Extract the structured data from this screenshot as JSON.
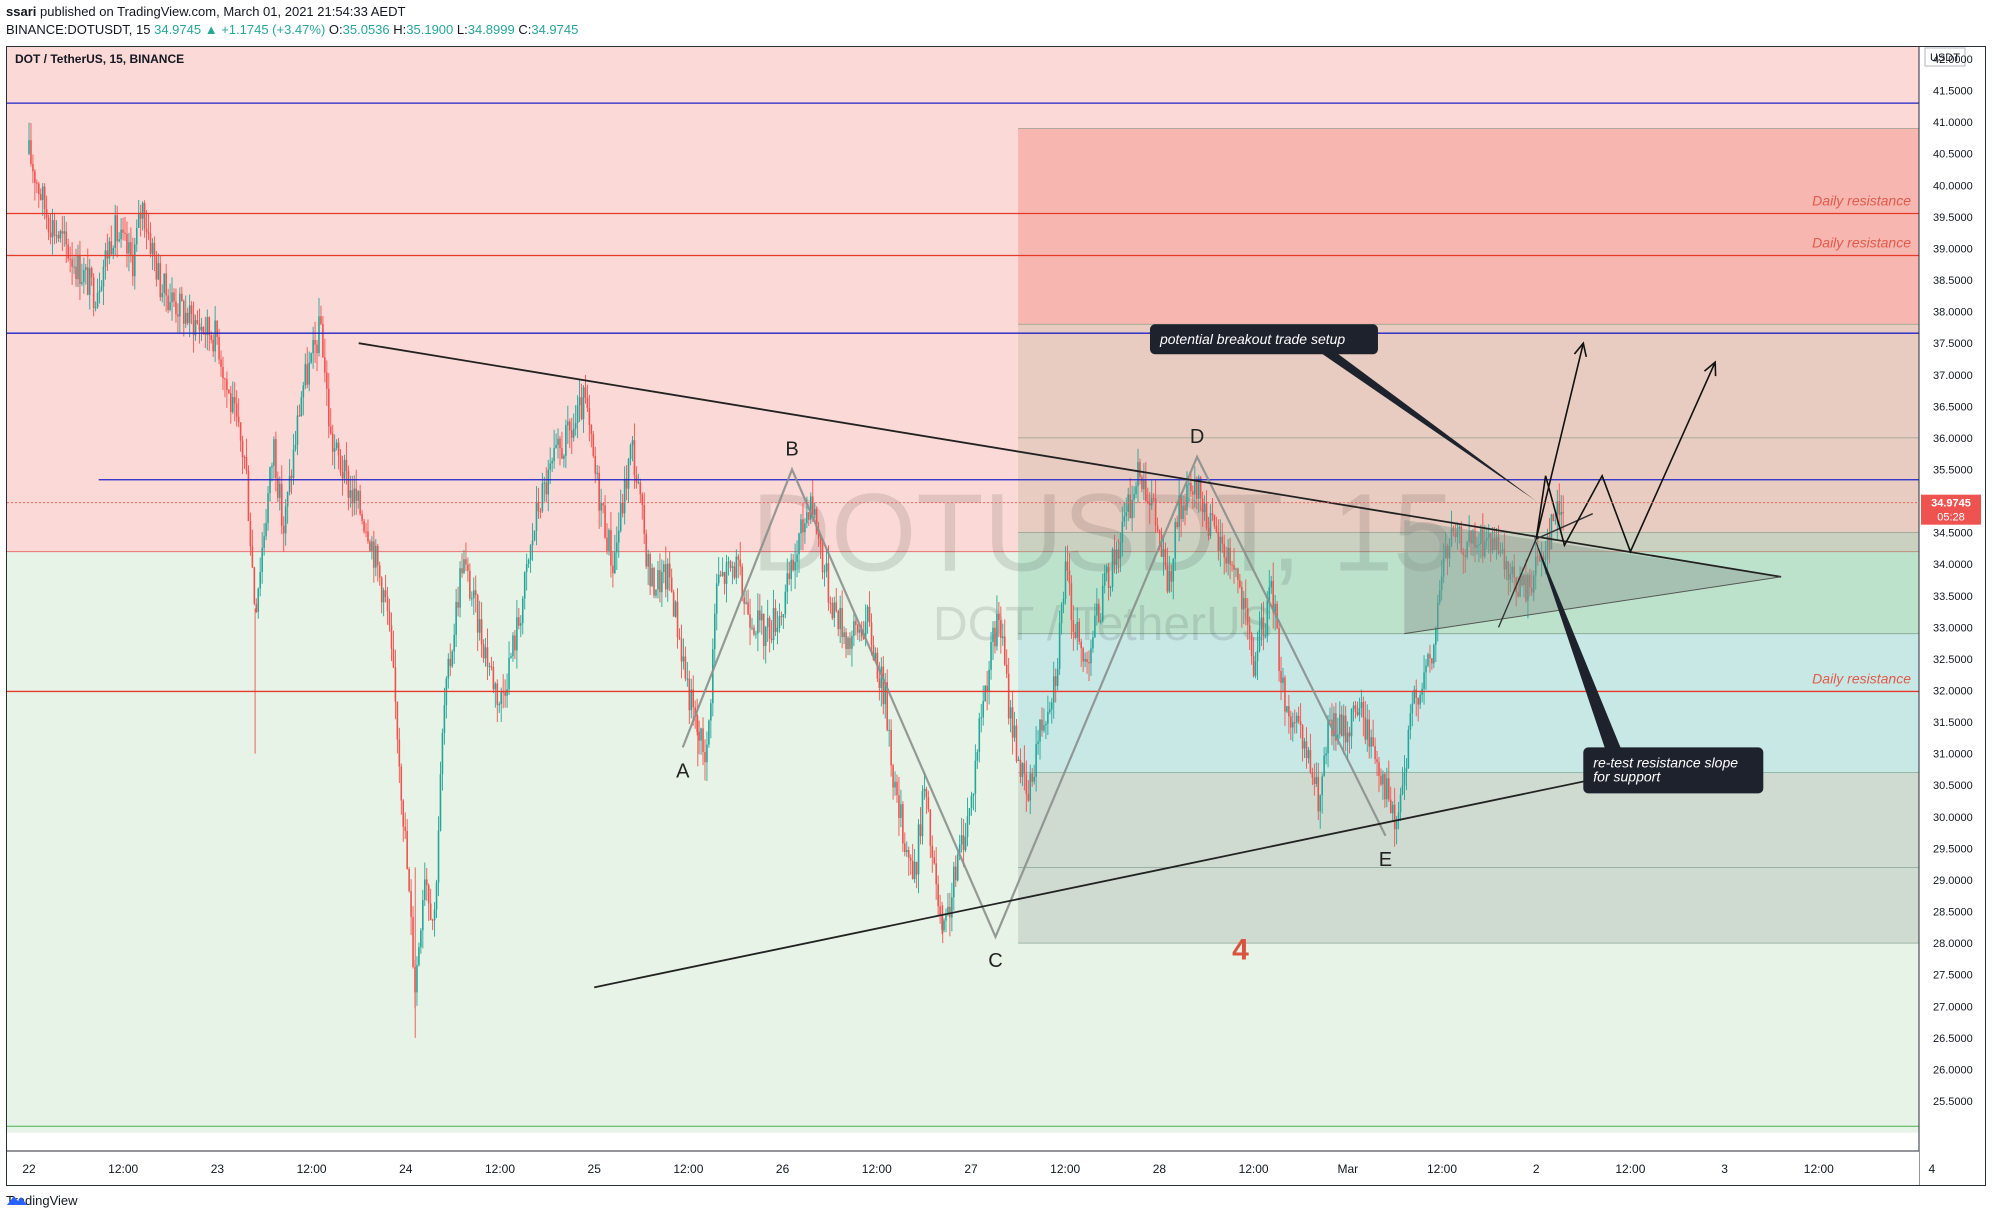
{
  "header": {
    "author": "ssari",
    "published_text": "published on TradingView.com, March 01, 2021 21:54:33 AEDT",
    "symbol_line": "BINANCE:DOTUSDT, 15",
    "change": "34.9745 ▲ +1.1745 (+3.47%)",
    "o_label": "O:",
    "o": "35.0536",
    "h_label": "H:",
    "h": "35.1900",
    "l_label": "L:",
    "l": "34.8999",
    "c_label": "C:",
    "c": "34.9745"
  },
  "chart_title": "DOT / TetherUS, 15, BINANCE",
  "watermark": {
    "main": "DOTUSDT, 15",
    "sub": "DOT / TetherUS"
  },
  "footer": {
    "brand": "TradingView"
  },
  "colors": {
    "candle_up": "#26a69a",
    "candle_down": "#ef5350",
    "resistance_zone": "#fbd9d6",
    "support_zone": "#e6f3e6",
    "blue_line": "#1e22c7",
    "red_line": "#e53a2a"
  },
  "chart_data": {
    "type": "candlestick",
    "currency": "USDT",
    "timeframe": "15",
    "x_range": [
      "2021-02-22 00:00",
      "2021-03-04 00:00"
    ],
    "x_tick_labels": [
      "22",
      "12:00",
      "23",
      "12:00",
      "24",
      "12:00",
      "25",
      "12:00",
      "26",
      "12:00",
      "27",
      "12:00",
      "28",
      "12:00",
      "Mar",
      "12:00",
      "2",
      "12:00",
      "3",
      "12:00",
      "4"
    ],
    "x_tick_days": [
      0,
      0.5,
      1,
      1.5,
      2,
      2.5,
      3,
      3.5,
      4,
      4.5,
      5,
      5.5,
      6,
      6.5,
      7,
      7.5,
      8,
      8.5,
      9,
      9.5,
      10.1
    ],
    "y_ticks": [
      25.5,
      26.0,
      26.5,
      27.0,
      27.5,
      28.0,
      28.5,
      29.0,
      29.5,
      30.0,
      30.5,
      31.0,
      31.5,
      32.0,
      32.5,
      33.0,
      33.5,
      34.0,
      34.5,
      35.0,
      35.5,
      36.0,
      36.5,
      37.0,
      37.5,
      38.0,
      38.5,
      39.0,
      39.5,
      40.0,
      40.5,
      41.0,
      41.5,
      42.0
    ],
    "y_range": [
      25.0,
      42.5
    ],
    "current_price": "34.9745",
    "countdown": "05:28",
    "price_path": [
      [
        0.0,
        40.5
      ],
      [
        0.1,
        39.5
      ],
      [
        0.2,
        39.0
      ],
      [
        0.35,
        38.3
      ],
      [
        0.45,
        39.3
      ],
      [
        0.55,
        38.8
      ],
      [
        0.6,
        39.7
      ],
      [
        0.7,
        38.4
      ],
      [
        0.85,
        37.9
      ],
      [
        1.0,
        37.6
      ],
      [
        1.05,
        36.8
      ],
      [
        1.15,
        35.6
      ],
      [
        1.2,
        33.3
      ],
      [
        1.3,
        35.9
      ],
      [
        1.35,
        34.5
      ],
      [
        1.45,
        36.8
      ],
      [
        1.5,
        37.2
      ],
      [
        1.55,
        37.8
      ],
      [
        1.6,
        36.0
      ],
      [
        1.7,
        35.2
      ],
      [
        1.8,
        34.6
      ],
      [
        1.9,
        33.3
      ],
      [
        1.95,
        31.6
      ],
      [
        2.0,
        29.5
      ],
      [
        2.05,
        27.3
      ],
      [
        2.1,
        29.2
      ],
      [
        2.15,
        28.3
      ],
      [
        2.2,
        31.6
      ],
      [
        2.3,
        34.1
      ],
      [
        2.4,
        32.9
      ],
      [
        2.5,
        31.8
      ],
      [
        2.6,
        33.1
      ],
      [
        2.7,
        34.9
      ],
      [
        2.8,
        35.7
      ],
      [
        2.9,
        36.2
      ],
      [
        2.95,
        36.6
      ],
      [
        3.0,
        35.5
      ],
      [
        3.1,
        34.0
      ],
      [
        3.2,
        35.9
      ],
      [
        3.3,
        33.7
      ],
      [
        3.4,
        33.8
      ],
      [
        3.5,
        32.0
      ],
      [
        3.55,
        31.3
      ],
      [
        3.6,
        31.0
      ],
      [
        3.65,
        33.7
      ],
      [
        3.75,
        34.0
      ],
      [
        3.8,
        33.4
      ],
      [
        3.9,
        32.9
      ],
      [
        4.0,
        33.3
      ],
      [
        4.05,
        33.9
      ],
      [
        4.15,
        35.1
      ],
      [
        4.25,
        33.5
      ],
      [
        4.35,
        32.8
      ],
      [
        4.45,
        33.1
      ],
      [
        4.55,
        31.8
      ],
      [
        4.6,
        30.3
      ],
      [
        4.7,
        29.0
      ],
      [
        4.75,
        30.5
      ],
      [
        4.8,
        29.2
      ],
      [
        4.85,
        28.0
      ],
      [
        4.95,
        29.6
      ],
      [
        5.0,
        30.2
      ],
      [
        5.05,
        31.6
      ],
      [
        5.1,
        32.5
      ],
      [
        5.15,
        33.2
      ],
      [
        5.2,
        31.8
      ],
      [
        5.25,
        31.0
      ],
      [
        5.3,
        30.2
      ],
      [
        5.35,
        31.2
      ],
      [
        5.45,
        32.3
      ],
      [
        5.5,
        33.9
      ],
      [
        5.55,
        33.0
      ],
      [
        5.6,
        32.4
      ],
      [
        5.7,
        33.5
      ],
      [
        5.8,
        34.5
      ],
      [
        5.9,
        35.5
      ],
      [
        5.95,
        35.1
      ],
      [
        6.0,
        34.4
      ],
      [
        6.05,
        33.6
      ],
      [
        6.1,
        34.8
      ],
      [
        6.2,
        35.2
      ],
      [
        6.3,
        34.4
      ],
      [
        6.4,
        34.0
      ],
      [
        6.5,
        32.4
      ],
      [
        6.6,
        33.6
      ],
      [
        6.65,
        32.1
      ],
      [
        6.7,
        31.5
      ],
      [
        6.75,
        31.2
      ],
      [
        6.8,
        30.8
      ],
      [
        6.85,
        30.2
      ],
      [
        6.9,
        31.4
      ],
      [
        7.0,
        31.4
      ],
      [
        7.05,
        31.8
      ],
      [
        7.15,
        31.0
      ],
      [
        7.2,
        30.5
      ],
      [
        7.25,
        29.8
      ],
      [
        7.3,
        30.6
      ],
      [
        7.35,
        31.9
      ],
      [
        7.45,
        32.5
      ],
      [
        7.5,
        34.0
      ],
      [
        7.55,
        34.4
      ],
      [
        7.65,
        34.3
      ],
      [
        7.75,
        34.4
      ],
      [
        7.85,
        33.8
      ],
      [
        7.95,
        33.6
      ],
      [
        8.0,
        34.0
      ],
      [
        8.05,
        34.3
      ],
      [
        8.1,
        34.8
      ],
      [
        8.15,
        35.0
      ]
    ],
    "horizontal_levels": [
      {
        "price": 41.3014,
        "color": "blue",
        "label": "41.3014"
      },
      {
        "price": 39.5539,
        "color": "red",
        "label": "39.5539",
        "text": "Daily resistance"
      },
      {
        "price": 38.8879,
        "color": "red",
        "label": "38.8879",
        "text": "Daily resistance"
      },
      {
        "price": 37.6584,
        "color": "blue",
        "label": "37.6584"
      },
      {
        "price": 35.3369,
        "color": "blue",
        "label": "35.3369"
      },
      {
        "price": 31.9857,
        "color": "red",
        "label": "31.9857",
        "text": "Daily resistance"
      }
    ],
    "zone_boundary_price": 34.2,
    "position_box": {
      "x_start_day": 5.25,
      "x_end_day": 10.1,
      "top": 40.9,
      "entry": 36.0,
      "entry_lines": [
        37.8,
        36.0,
        34.5
      ],
      "stop_lines": [
        32.9,
        30.7,
        29.2
      ],
      "bottom": 28.0
    },
    "wave_labels": [
      {
        "text": "A",
        "day": 3.47,
        "price": 31.1
      },
      {
        "text": "B",
        "day": 4.05,
        "price": 35.5
      },
      {
        "text": "C",
        "day": 5.13,
        "price": 28.1
      },
      {
        "text": "D",
        "day": 6.2,
        "price": 35.7
      },
      {
        "text": "E",
        "day": 7.2,
        "price": 29.7
      },
      {
        "text": "4",
        "day": 6.43,
        "price": 27.9
      }
    ],
    "wave_path": [
      [
        3.47,
        31.1
      ],
      [
        4.05,
        35.5
      ],
      [
        5.13,
        28.1
      ],
      [
        6.2,
        35.7
      ],
      [
        7.2,
        29.7
      ]
    ],
    "trendlines": [
      {
        "from": [
          1.75,
          37.5
        ],
        "to": [
          9.3,
          33.8
        ]
      },
      {
        "from": [
          3.0,
          27.3
        ],
        "to": [
          8.8,
          30.9
        ]
      }
    ],
    "triangle": [
      [
        7.3,
        32.9
      ],
      [
        9.3,
        33.8
      ],
      [
        7.3,
        34.7
      ]
    ],
    "small_triangle_path": [
      [
        7.8,
        33.0
      ],
      [
        8.0,
        34.4
      ],
      [
        8.3,
        34.8
      ]
    ],
    "projection_path_1": [
      [
        8.0,
        34.4
      ],
      [
        8.25,
        37.5
      ]
    ],
    "projection_path_2": [
      [
        8.0,
        34.4
      ],
      [
        8.05,
        35.4
      ],
      [
        8.15,
        34.3
      ],
      [
        8.35,
        35.4
      ],
      [
        8.5,
        34.2
      ],
      [
        8.95,
        37.2
      ]
    ],
    "callouts": [
      {
        "text": "potential breakout trade setup",
        "box_day": 5.95,
        "box_price": 37.8,
        "tip_day": 8.0,
        "tip_price": 35.0
      },
      {
        "text": "re-test resistance slope",
        "text2": "for support",
        "box_day": 8.25,
        "box_price": 31.1,
        "tip_day": 7.98,
        "tip_price": 34.5
      }
    ]
  }
}
